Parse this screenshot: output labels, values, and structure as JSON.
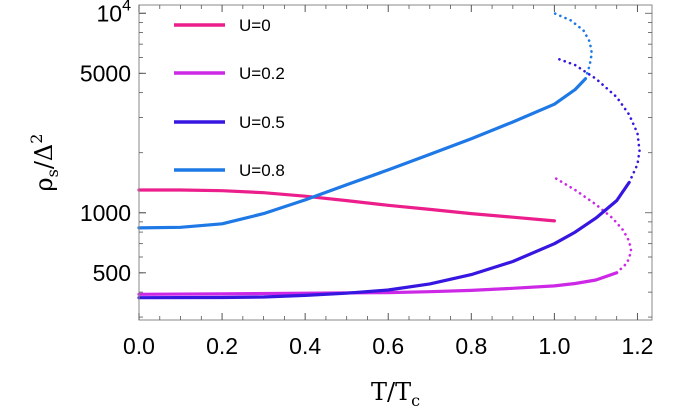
{
  "chart_data": {
    "type": "line",
    "xlabel": "T/T_c",
    "ylabel": "ρ_s/Δ^2",
    "x_scale": "linear",
    "y_scale": "log",
    "xlim": [
      0.0,
      1.235
    ],
    "ylim": [
      290,
      11000
    ],
    "x_ticks": [
      0.0,
      0.2,
      0.4,
      0.6,
      0.8,
      1.0,
      1.2
    ],
    "x_tick_labels": [
      "0.0",
      "0.2",
      "0.4",
      "0.6",
      "0.8",
      "1.0",
      "1.2"
    ],
    "y_ticks": [
      500,
      1000,
      5000,
      10000
    ],
    "y_tick_labels": [
      "500",
      "1000",
      "5000",
      "10^4"
    ],
    "legend_position": "top-left",
    "series": [
      {
        "name": "U=0",
        "color": "#ec1e8c",
        "solid": [
          [
            0.0,
            1300
          ],
          [
            0.1,
            1300
          ],
          [
            0.2,
            1290
          ],
          [
            0.3,
            1260
          ],
          [
            0.4,
            1210
          ],
          [
            0.5,
            1150
          ],
          [
            0.6,
            1090
          ],
          [
            0.7,
            1040
          ],
          [
            0.8,
            990
          ],
          [
            0.9,
            950
          ],
          [
            1.0,
            910
          ]
        ],
        "dotted": []
      },
      {
        "name": "U=0.2",
        "color": "#cc28e6",
        "solid": [
          [
            0.0,
            390
          ],
          [
            0.2,
            392
          ],
          [
            0.4,
            395
          ],
          [
            0.6,
            398
          ],
          [
            0.7,
            402
          ],
          [
            0.8,
            408
          ],
          [
            0.9,
            418
          ],
          [
            1.0,
            430
          ],
          [
            1.05,
            442
          ],
          [
            1.1,
            460
          ],
          [
            1.15,
            500
          ]
        ],
        "dotted": [
          [
            1.15,
            500
          ],
          [
            1.175,
            560
          ],
          [
            1.185,
            640
          ],
          [
            1.18,
            720
          ],
          [
            1.165,
            820
          ],
          [
            1.14,
            940
          ],
          [
            1.1,
            1100
          ],
          [
            1.05,
            1300
          ],
          [
            1.0,
            1500
          ]
        ]
      },
      {
        "name": "U=0.5",
        "color": "#3616e0",
        "solid": [
          [
            0.0,
            375
          ],
          [
            0.2,
            376
          ],
          [
            0.3,
            378
          ],
          [
            0.4,
            385
          ],
          [
            0.5,
            395
          ],
          [
            0.6,
            410
          ],
          [
            0.7,
            440
          ],
          [
            0.8,
            490
          ],
          [
            0.9,
            570
          ],
          [
            1.0,
            700
          ],
          [
            1.05,
            800
          ],
          [
            1.1,
            940
          ],
          [
            1.15,
            1150
          ],
          [
            1.18,
            1420
          ]
        ],
        "dotted": [
          [
            1.18,
            1420
          ],
          [
            1.2,
            1750
          ],
          [
            1.205,
            2050
          ],
          [
            1.2,
            2500
          ],
          [
            1.18,
            3100
          ],
          [
            1.15,
            3800
          ],
          [
            1.1,
            4700
          ],
          [
            1.05,
            5500
          ],
          [
            1.0,
            6000
          ]
        ]
      },
      {
        "name": "U=0.8",
        "color": "#1e78e6",
        "solid": [
          [
            0.0,
            840
          ],
          [
            0.1,
            845
          ],
          [
            0.2,
            880
          ],
          [
            0.3,
            990
          ],
          [
            0.4,
            1160
          ],
          [
            0.5,
            1380
          ],
          [
            0.6,
            1640
          ],
          [
            0.7,
            1960
          ],
          [
            0.8,
            2350
          ],
          [
            0.9,
            2850
          ],
          [
            1.0,
            3500
          ],
          [
            1.05,
            4150
          ],
          [
            1.075,
            4700
          ]
        ],
        "dotted": [
          [
            1.075,
            4700
          ],
          [
            1.085,
            5500
          ],
          [
            1.09,
            6300
          ],
          [
            1.085,
            7200
          ],
          [
            1.07,
            8200
          ],
          [
            1.04,
            9200
          ],
          [
            1.0,
            10000
          ]
        ]
      }
    ]
  }
}
